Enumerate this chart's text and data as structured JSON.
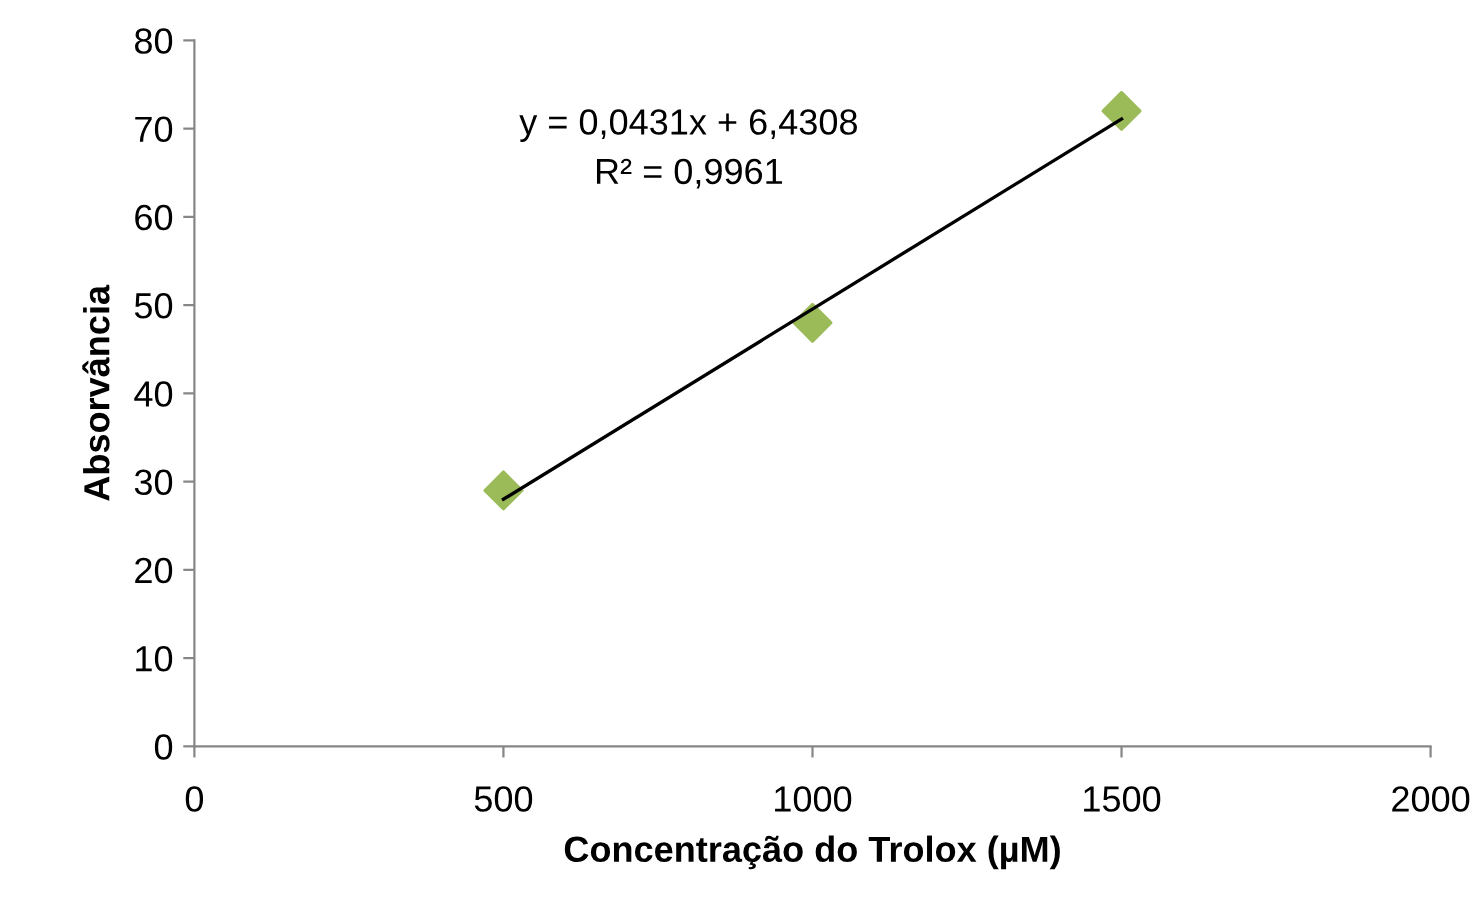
{
  "chart_data": {
    "type": "scatter",
    "xlabel": "Concentração do Trolox (µM)",
    "ylabel": "Absorvância",
    "xlim": [
      0,
      2000
    ],
    "xticks": [
      0,
      500,
      1000,
      1500,
      2000
    ],
    "ylim": [
      0,
      80
    ],
    "yticks": [
      0,
      10,
      20,
      30,
      40,
      50,
      60,
      70,
      80
    ],
    "grid": false,
    "legend": false,
    "marker": "diamond",
    "series": [
      {
        "color": "#9bbb59",
        "x": [
          500,
          1000,
          1500
        ],
        "values": [
          29,
          48,
          72
        ]
      },
      {
        "type": "line",
        "color": "#000000",
        "x": [
          500,
          1500
        ],
        "values": [
          28,
          71.1
        ],
        "marker": "none",
        "line_style": "solid"
      }
    ],
    "annotations": [
      "y = 0,0431x + 6,4308",
      "R² = 0,9961"
    ]
  }
}
